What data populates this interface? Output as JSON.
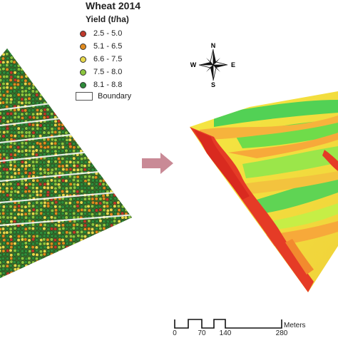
{
  "legend": {
    "title": "Wheat 2014",
    "subtitle": "Yield (t/ha)",
    "items": [
      {
        "label": "2.5 - 5.0",
        "color": "#c0392b"
      },
      {
        "label": "5.1 - 6.5",
        "color": "#e08a1e"
      },
      {
        "label": "6.6 - 7.5",
        "color": "#e7d84a"
      },
      {
        "label": "7.5 - 8.0",
        "color": "#8cc63f"
      },
      {
        "label": "8.1 - 8.8",
        "color": "#2e8b3a"
      }
    ],
    "boundary_label": "Boundary"
  },
  "compass": {
    "n": "N",
    "s": "S",
    "e": "E",
    "w": "W"
  },
  "arrow_color": "#c98a96",
  "scale_bar": {
    "ticks": [
      "0",
      "70",
      "140",
      "280"
    ],
    "unit": "Meters"
  }
}
